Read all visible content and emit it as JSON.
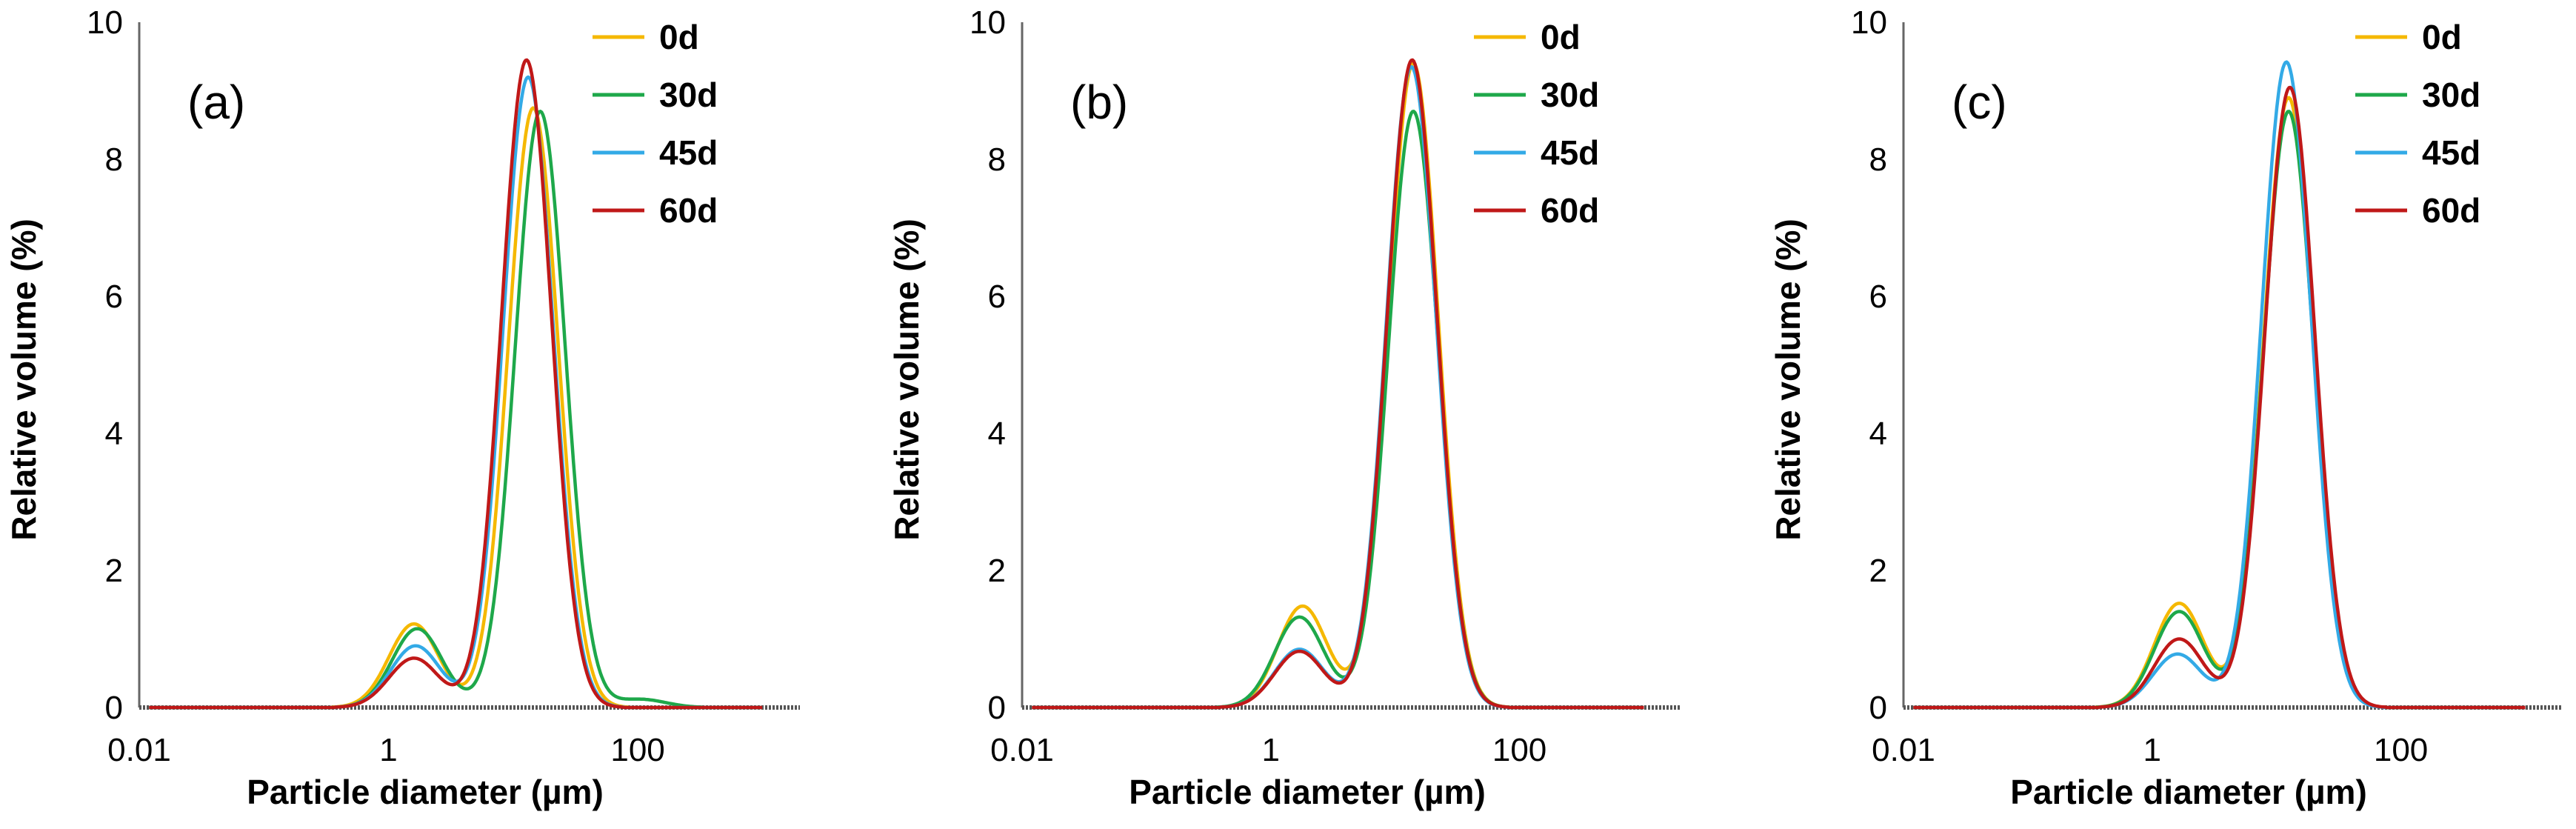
{
  "chart_data": [
    {
      "type": "line",
      "panel_label": "(a)",
      "xlabel": "Particle diameter (µm)",
      "ylabel": "Relative volume (%)",
      "xscale": "log",
      "xlim": [
        0.01,
        2000
      ],
      "ylim": [
        0,
        10
      ],
      "yticks": [
        "0",
        "2",
        "4",
        "6",
        "8",
        "10"
      ],
      "xticks": [
        "0.01",
        "1",
        "100"
      ],
      "legend_position": "top-right",
      "series": [
        {
          "name": "0d",
          "color": "#f5b800",
          "peaks": [
            {
              "mu": 1.6,
              "amp": 1.22
            },
            {
              "mu": 14.5,
              "amp": 8.75
            }
          ]
        },
        {
          "name": "30d",
          "color": "#1ea84a",
          "peaks": [
            {
              "mu": 1.7,
              "amp": 1.15
            },
            {
              "mu": 16.5,
              "amp": 8.7
            },
            {
              "mu": 105,
              "amp": 0.12
            }
          ]
        },
        {
          "name": "45d",
          "color": "#33aae6",
          "peaks": [
            {
              "mu": 1.65,
              "amp": 0.9
            },
            {
              "mu": 13.2,
              "amp": 9.2
            }
          ]
        },
        {
          "name": "60d",
          "color": "#c01818",
          "peaks": [
            {
              "mu": 1.6,
              "amp": 0.72
            },
            {
              "mu": 12.8,
              "amp": 9.45
            }
          ]
        }
      ]
    },
    {
      "type": "line",
      "panel_label": "(b)",
      "xlabel": "Particle diameter (µm)",
      "ylabel": "Relative volume (%)",
      "xscale": "log",
      "xlim": [
        0.01,
        2000
      ],
      "ylim": [
        0,
        10
      ],
      "yticks": [
        "0",
        "2",
        "4",
        "6",
        "8",
        "10"
      ],
      "xticks": [
        "0.01",
        "1",
        "100"
      ],
      "legend_position": "top-right",
      "series": [
        {
          "name": "0d",
          "color": "#f5b800",
          "peaks": [
            {
              "mu": 1.8,
              "amp": 1.48
            },
            {
              "mu": 14.0,
              "amp": 9.4
            }
          ]
        },
        {
          "name": "30d",
          "color": "#1ea84a",
          "peaks": [
            {
              "mu": 1.7,
              "amp": 1.32
            },
            {
              "mu": 14.0,
              "amp": 8.7
            }
          ]
        },
        {
          "name": "45d",
          "color": "#33aae6",
          "peaks": [
            {
              "mu": 1.7,
              "amp": 0.85
            },
            {
              "mu": 13.5,
              "amp": 9.35
            }
          ]
        },
        {
          "name": "60d",
          "color": "#c01818",
          "peaks": [
            {
              "mu": 1.7,
              "amp": 0.82
            },
            {
              "mu": 13.7,
              "amp": 9.45
            }
          ]
        }
      ]
    },
    {
      "type": "line",
      "panel_label": "(c)",
      "xlabel": "Particle diameter (µm)",
      "ylabel": "Relative volume (%)",
      "xscale": "log",
      "xlim": [
        0.01,
        2000
      ],
      "ylim": [
        0,
        10
      ],
      "yticks": [
        "0",
        "2",
        "4",
        "6",
        "8",
        "10"
      ],
      "xticks": [
        "0.01",
        "1",
        "100"
      ],
      "legend_position": "top-right",
      "series": [
        {
          "name": "0d",
          "color": "#f5b800",
          "peaks": [
            {
              "mu": 1.65,
              "amp": 1.52
            },
            {
              "mu": 12.5,
              "amp": 8.9
            }
          ]
        },
        {
          "name": "30d",
          "color": "#1ea84a",
          "peaks": [
            {
              "mu": 1.65,
              "amp": 1.4
            },
            {
              "mu": 12.5,
              "amp": 8.7
            }
          ]
        },
        {
          "name": "45d",
          "color": "#33aae6",
          "peaks": [
            {
              "mu": 1.6,
              "amp": 0.78
            },
            {
              "mu": 12.0,
              "amp": 9.42
            }
          ]
        },
        {
          "name": "60d",
          "color": "#c01818",
          "peaks": [
            {
              "mu": 1.65,
              "amp": 1.0
            },
            {
              "mu": 12.8,
              "amp": 9.05
            }
          ]
        }
      ]
    }
  ]
}
